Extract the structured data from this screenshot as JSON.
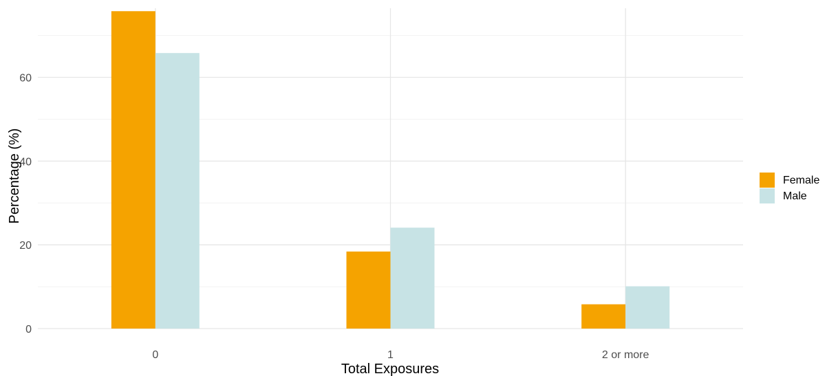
{
  "chart_data": {
    "type": "bar",
    "title": "",
    "xlabel": "Total Exposures",
    "ylabel": "Percentage (%)",
    "categories": [
      "0",
      "1",
      "2 or more"
    ],
    "series": [
      {
        "name": "Female",
        "color": "#F5A300",
        "values": [
          75.8,
          18.4,
          5.8
        ]
      },
      {
        "name": "Male",
        "color": "#C7E3E5",
        "values": [
          65.8,
          24.1,
          10.1
        ]
      }
    ],
    "ylim": [
      0,
      76.5
    ],
    "yticks": [
      0,
      20,
      40,
      60
    ],
    "grid": true,
    "legend_position": "right"
  }
}
